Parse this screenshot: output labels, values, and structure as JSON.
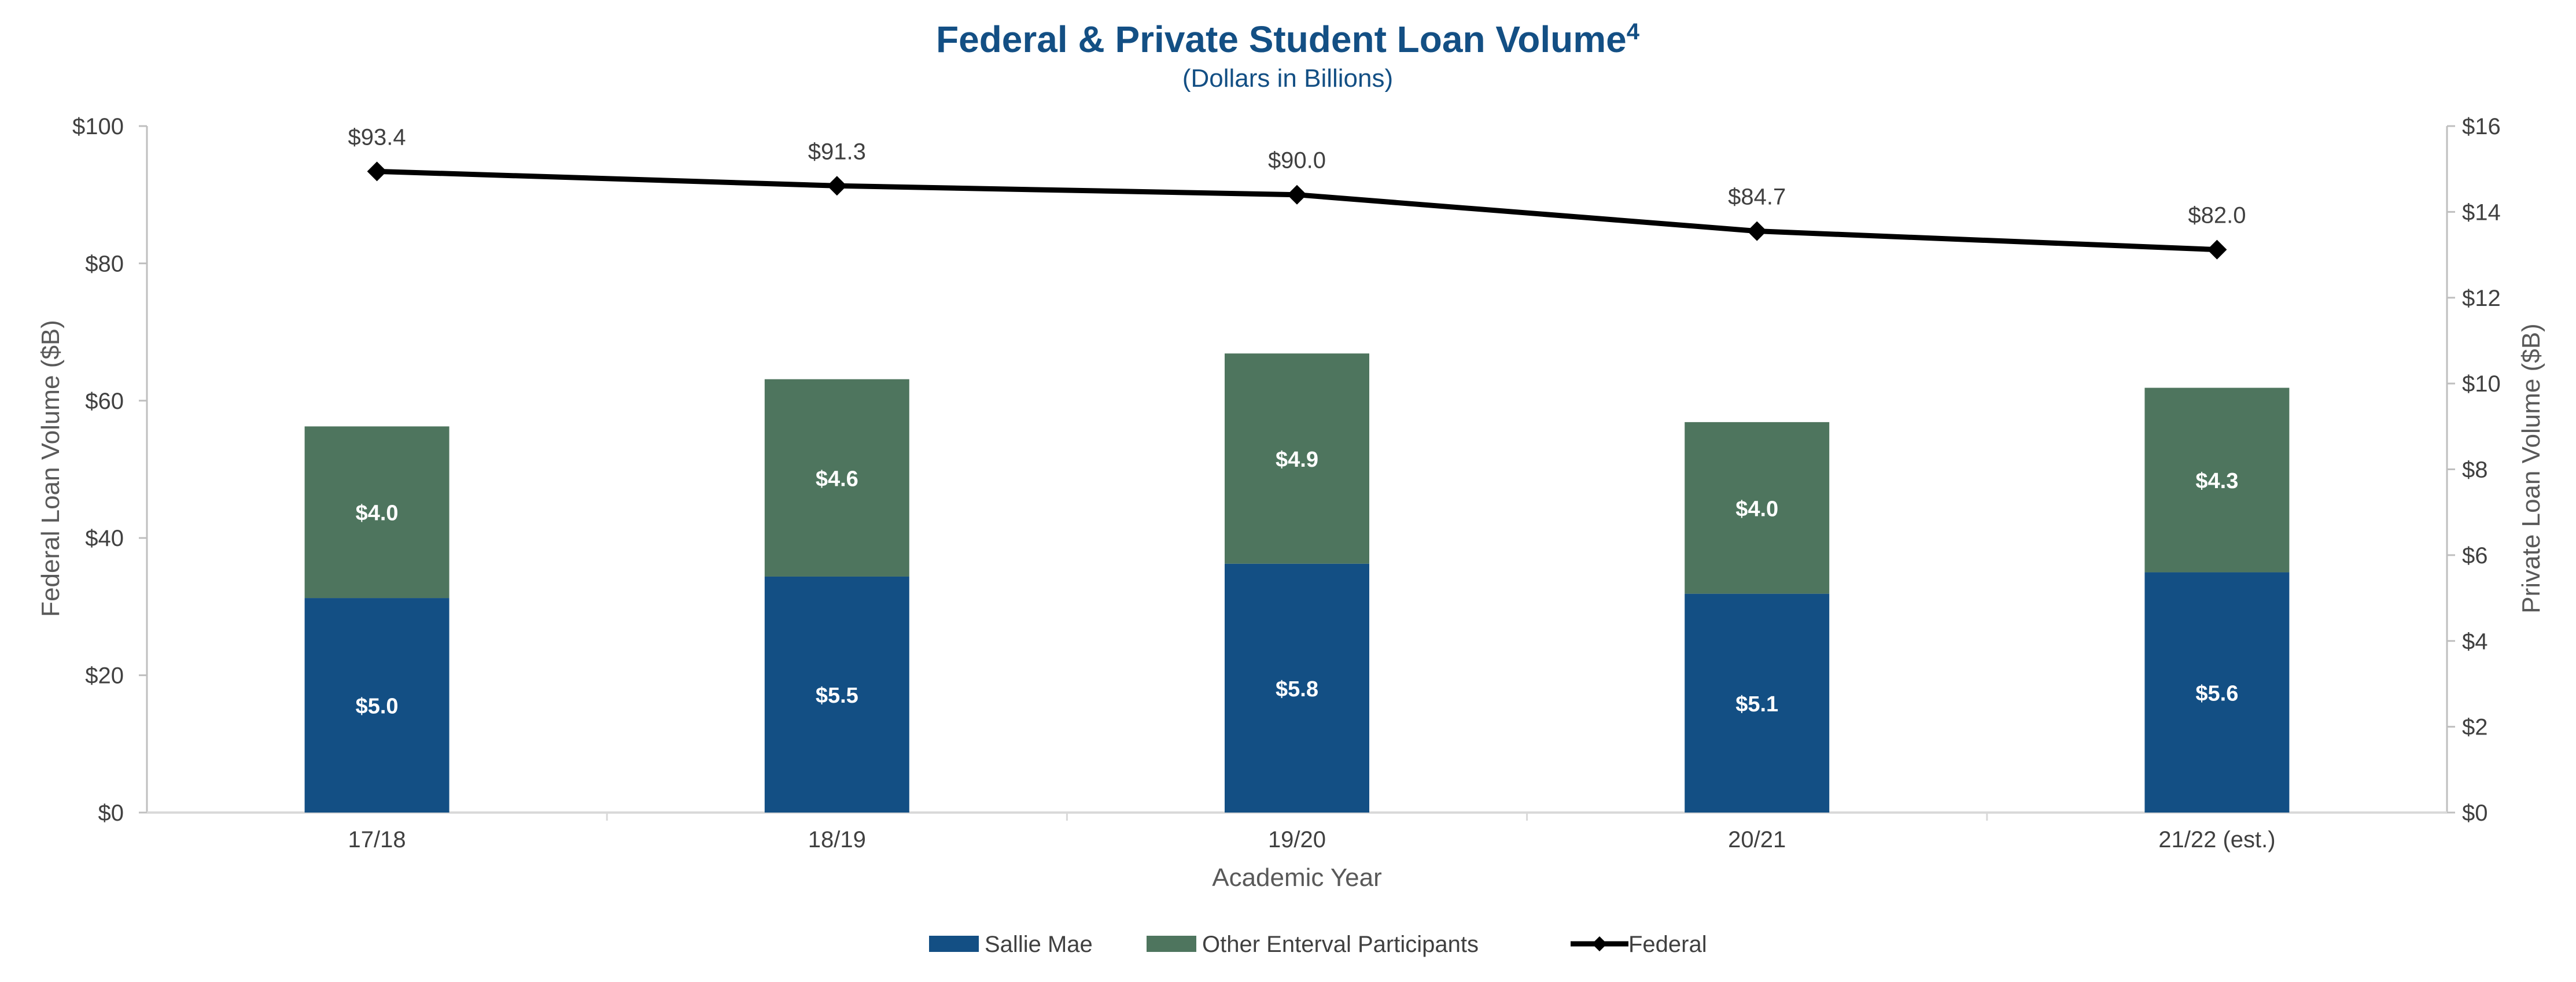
{
  "chart_data": {
    "type": "bar",
    "title": "Federal & Private Student Loan Volume",
    "title_superscript": "4",
    "subtitle": "(Dollars in Billions)",
    "xlabel": "Academic Year",
    "ylabel": "Federal Loan Volume ($B)",
    "y2label": "Private Loan Volume ($B)",
    "categories": [
      "17/18",
      "18/19",
      "19/20",
      "20/21",
      "21/22 (est.)"
    ],
    "ylim": [
      0,
      100
    ],
    "y2lim": [
      0,
      16
    ],
    "yticks": [
      "$0",
      "$20",
      "$40",
      "$60",
      "$80",
      "$100"
    ],
    "y2ticks": [
      "$0",
      "$2",
      "$4",
      "$6",
      "$8",
      "$10",
      "$12",
      "$14",
      "$16"
    ],
    "grid": false,
    "legend_position": "bottom",
    "series": [
      {
        "name": "Sallie Mae",
        "kind": "stacked-bar",
        "axis": "right",
        "color": "#134f84",
        "values": [
          5.0,
          5.5,
          5.8,
          5.1,
          5.6
        ],
        "labels": [
          "$5.0",
          "$5.5",
          "$5.8",
          "$5.1",
          "$5.6"
        ]
      },
      {
        "name": "Other Enterval Participants",
        "kind": "stacked-bar",
        "axis": "right",
        "color": "#4e755e",
        "values": [
          4.0,
          4.6,
          4.9,
          4.0,
          4.3
        ],
        "labels": [
          "$4.0",
          "$4.6",
          "$4.9",
          "$4.0",
          "$4.3"
        ]
      },
      {
        "name": "Federal",
        "kind": "line",
        "axis": "left",
        "color": "#000000",
        "values": [
          93.4,
          91.3,
          90.0,
          84.7,
          82.0
        ],
        "labels": [
          "$93.4",
          "$91.3",
          "$90.0",
          "$84.7",
          "$82.0"
        ]
      }
    ]
  }
}
